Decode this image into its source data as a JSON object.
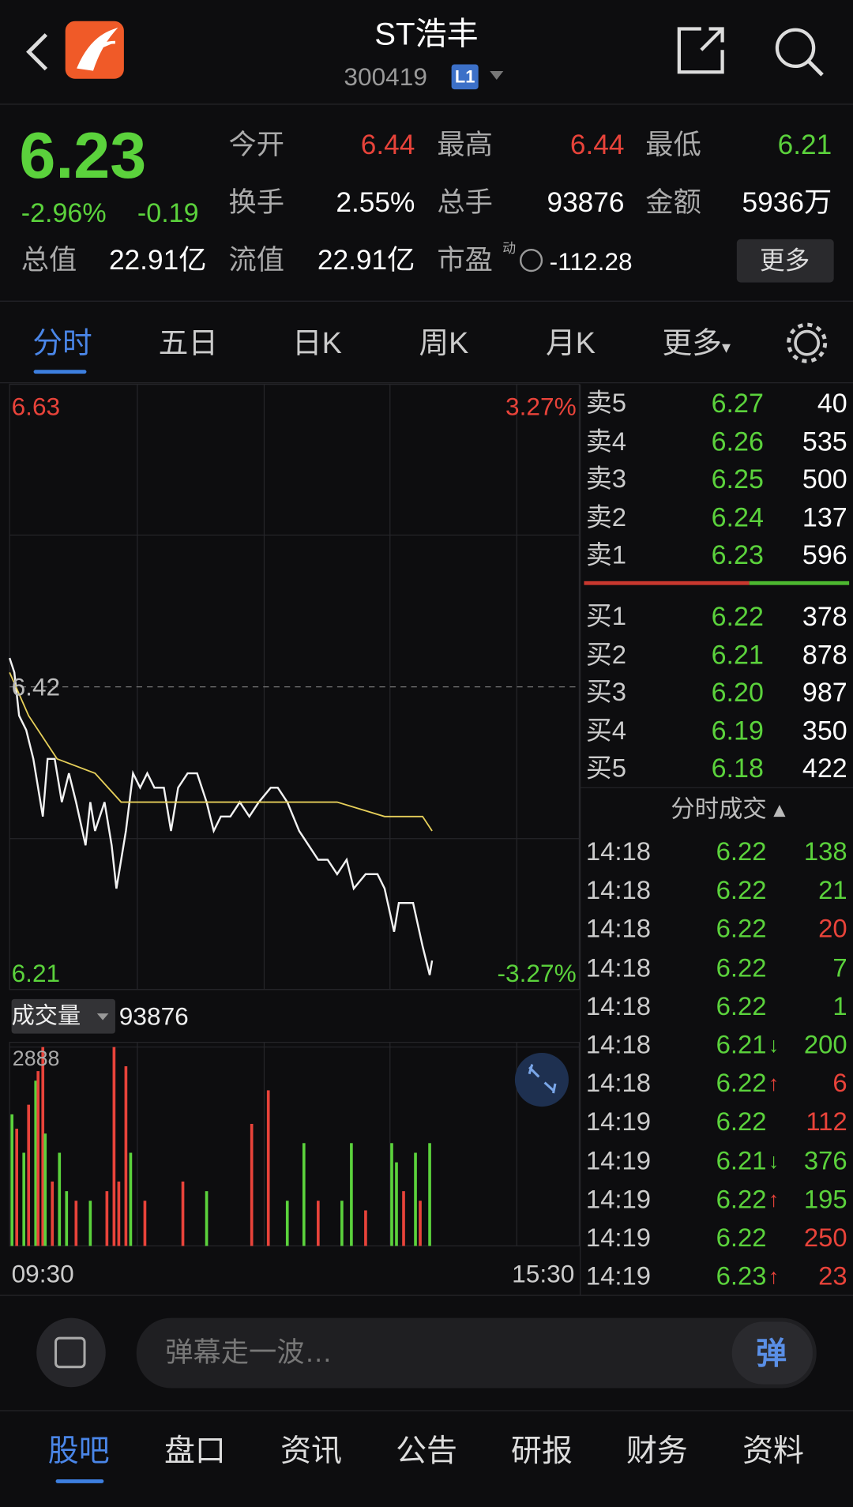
{
  "header": {
    "title": "ST浩丰",
    "code": "300419",
    "badge": "L1"
  },
  "quote": {
    "price": "6.23",
    "change_pct": "-2.96%",
    "change": "-0.19",
    "stats": [
      {
        "label": "今开",
        "value": "6.44",
        "color": "#e8433a"
      },
      {
        "label": "最高",
        "value": "6.44",
        "color": "#e8433a"
      },
      {
        "label": "最低",
        "value": "6.21",
        "color": "#5bd23c"
      },
      {
        "label": "换手",
        "value": "2.55%"
      },
      {
        "label": "总手",
        "value": "93876"
      },
      {
        "label": "金额",
        "value": "5936万"
      },
      {
        "label": "总值",
        "value": "22.91亿"
      },
      {
        "label": "流值",
        "value": "22.91亿"
      },
      {
        "label": "市盈",
        "tag": "动",
        "value": "-112.28"
      }
    ],
    "more": "更多"
  },
  "tabs": [
    "分时",
    "五日",
    "日K",
    "周K",
    "月K",
    "更多"
  ],
  "chart_data": [
    {
      "type": "line",
      "ylim": [
        6.21,
        6.63
      ],
      "yticks": [
        6.63,
        6.42,
        6.21
      ],
      "y2lim": [
        -3.27,
        3.27
      ],
      "y2ticks": [
        {
          "value": 3.27,
          "label": "3.27%"
        },
        {
          "value": -3.27,
          "label": "-3.27%"
        }
      ],
      "xlim": [
        0,
        240
      ],
      "xticks": [
        {
          "value": 0,
          "label": "09:30"
        },
        {
          "value": 240,
          "label": "15:30"
        }
      ],
      "series": [
        {
          "color": "#f2f2f2",
          "x": [
            0,
            2,
            4,
            7,
            10,
            14,
            16,
            19,
            22,
            25,
            28,
            32,
            34,
            36,
            40,
            43,
            45,
            49,
            52,
            55,
            58,
            61,
            65,
            68,
            71,
            75,
            79,
            83,
            86,
            89,
            93,
            97,
            101,
            105,
            110,
            113,
            117,
            122,
            126,
            130,
            134,
            138,
            142,
            145,
            150,
            155,
            158,
            162,
            164,
            170,
            174,
            177,
            178
          ],
          "values": [
            6.44,
            6.43,
            6.4,
            6.39,
            6.37,
            6.33,
            6.37,
            6.37,
            6.34,
            6.36,
            6.34,
            6.31,
            6.34,
            6.32,
            6.34,
            6.31,
            6.28,
            6.32,
            6.36,
            6.35,
            6.36,
            6.35,
            6.35,
            6.32,
            6.35,
            6.36,
            6.36,
            6.34,
            6.32,
            6.33,
            6.33,
            6.34,
            6.33,
            6.34,
            6.35,
            6.35,
            6.34,
            6.32,
            6.31,
            6.3,
            6.3,
            6.29,
            6.3,
            6.28,
            6.29,
            6.29,
            6.28,
            6.25,
            6.27,
            6.27,
            6.24,
            6.22,
            6.23
          ]
        },
        {
          "color": "#e6cf5a",
          "x": [
            0,
            8,
            20,
            36,
            47,
            77,
            117,
            138,
            158,
            174,
            178
          ],
          "values": [
            6.43,
            6.4,
            6.37,
            6.36,
            6.34,
            6.34,
            6.34,
            6.34,
            6.33,
            6.33,
            6.32
          ]
        }
      ]
    },
    {
      "type": "bar",
      "title": "成交量",
      "total": "93876",
      "xlim": [
        0,
        240
      ],
      "ylim": [
        0,
        2888
      ],
      "yticks": [
        2888
      ],
      "x": [
        1,
        3,
        6,
        8,
        11,
        12,
        14,
        15,
        18,
        21,
        24,
        28,
        34,
        41,
        44,
        46,
        49,
        51,
        57,
        73,
        83,
        102,
        109,
        117,
        124,
        130,
        140,
        144,
        150,
        161,
        163,
        166,
        171,
        173,
        177
      ],
      "values": [
        1911,
        1702,
        1353,
        2051,
        2400,
        2539,
        2888,
        1632,
        935,
        1353,
        795,
        656,
        656,
        795,
        2888,
        935,
        2609,
        1353,
        656,
        935,
        795,
        1772,
        2260,
        656,
        1493,
        656,
        656,
        1493,
        516,
        1493,
        1214,
        795,
        1353,
        656,
        1493
      ],
      "colors": [
        "#5bd23c",
        "#e8433a",
        "#5bd23c",
        "#e8433a",
        "#5bd23c",
        "#e8433a",
        "#e8433a",
        "#5bd23c",
        "#e8433a",
        "#5bd23c",
        "#5bd23c",
        "#e8433a",
        "#5bd23c",
        "#e8433a",
        "#e8433a",
        "#e8433a",
        "#e8433a",
        "#5bd23c",
        "#e8433a",
        "#e8433a",
        "#5bd23c",
        "#e8433a",
        "#e8433a",
        "#5bd23c",
        "#5bd23c",
        "#e8433a",
        "#5bd23c",
        "#5bd23c",
        "#e8433a",
        "#5bd23c",
        "#5bd23c",
        "#e8433a",
        "#5bd23c",
        "#e8433a",
        "#5bd23c"
      ]
    }
  ],
  "order_book": {
    "asks": [
      {
        "label": "卖5",
        "price": "6.27",
        "volume": "40"
      },
      {
        "label": "卖4",
        "price": "6.26",
        "volume": "535"
      },
      {
        "label": "卖3",
        "price": "6.25",
        "volume": "500"
      },
      {
        "label": "卖2",
        "price": "6.24",
        "volume": "137"
      },
      {
        "label": "卖1",
        "price": "6.23",
        "volume": "596"
      }
    ],
    "bids": [
      {
        "label": "买1",
        "price": "6.22",
        "volume": "378"
      },
      {
        "label": "买2",
        "price": "6.21",
        "volume": "878"
      },
      {
        "label": "买3",
        "price": "6.20",
        "volume": "987"
      },
      {
        "label": "买4",
        "price": "6.19",
        "volume": "350"
      },
      {
        "label": "买5",
        "price": "6.18",
        "volume": "422"
      }
    ]
  },
  "trades": {
    "title": "分时成交",
    "rows": [
      {
        "time": "14:18",
        "price": "6.22",
        "volume": "138",
        "color": "#5bd23c"
      },
      {
        "time": "14:18",
        "price": "6.22",
        "volume": "21",
        "color": "#5bd23c"
      },
      {
        "time": "14:18",
        "price": "6.22",
        "volume": "20",
        "color": "#e8433a"
      },
      {
        "time": "14:18",
        "price": "6.22",
        "volume": "7",
        "color": "#5bd23c"
      },
      {
        "time": "14:18",
        "price": "6.22",
        "volume": "1",
        "color": "#5bd23c"
      },
      {
        "time": "14:18",
        "price": "6.21",
        "arrow": "↓",
        "volume": "200",
        "color": "#5bd23c"
      },
      {
        "time": "14:18",
        "price": "6.22",
        "arrow": "↑",
        "volume": "6",
        "color": "#e8433a"
      },
      {
        "time": "14:19",
        "price": "6.22",
        "volume": "112",
        "color": "#e8433a"
      },
      {
        "time": "14:19",
        "price": "6.21",
        "arrow": "↓",
        "volume": "376",
        "color": "#5bd23c"
      },
      {
        "time": "14:19",
        "price": "6.22",
        "arrow": "↑",
        "volume": "195",
        "color": "#5bd23c"
      },
      {
        "time": "14:19",
        "price": "6.22",
        "volume": "250",
        "color": "#e8433a"
      },
      {
        "time": "14:19",
        "price": "6.23",
        "arrow": "↑",
        "volume": "23",
        "color": "#e8433a"
      }
    ]
  },
  "comment": {
    "placeholder": "弹幕走一波…",
    "button": "弹"
  },
  "bottom_tabs": [
    "股吧",
    "盘口",
    "资讯",
    "公告",
    "研报",
    "财务",
    "资料"
  ]
}
